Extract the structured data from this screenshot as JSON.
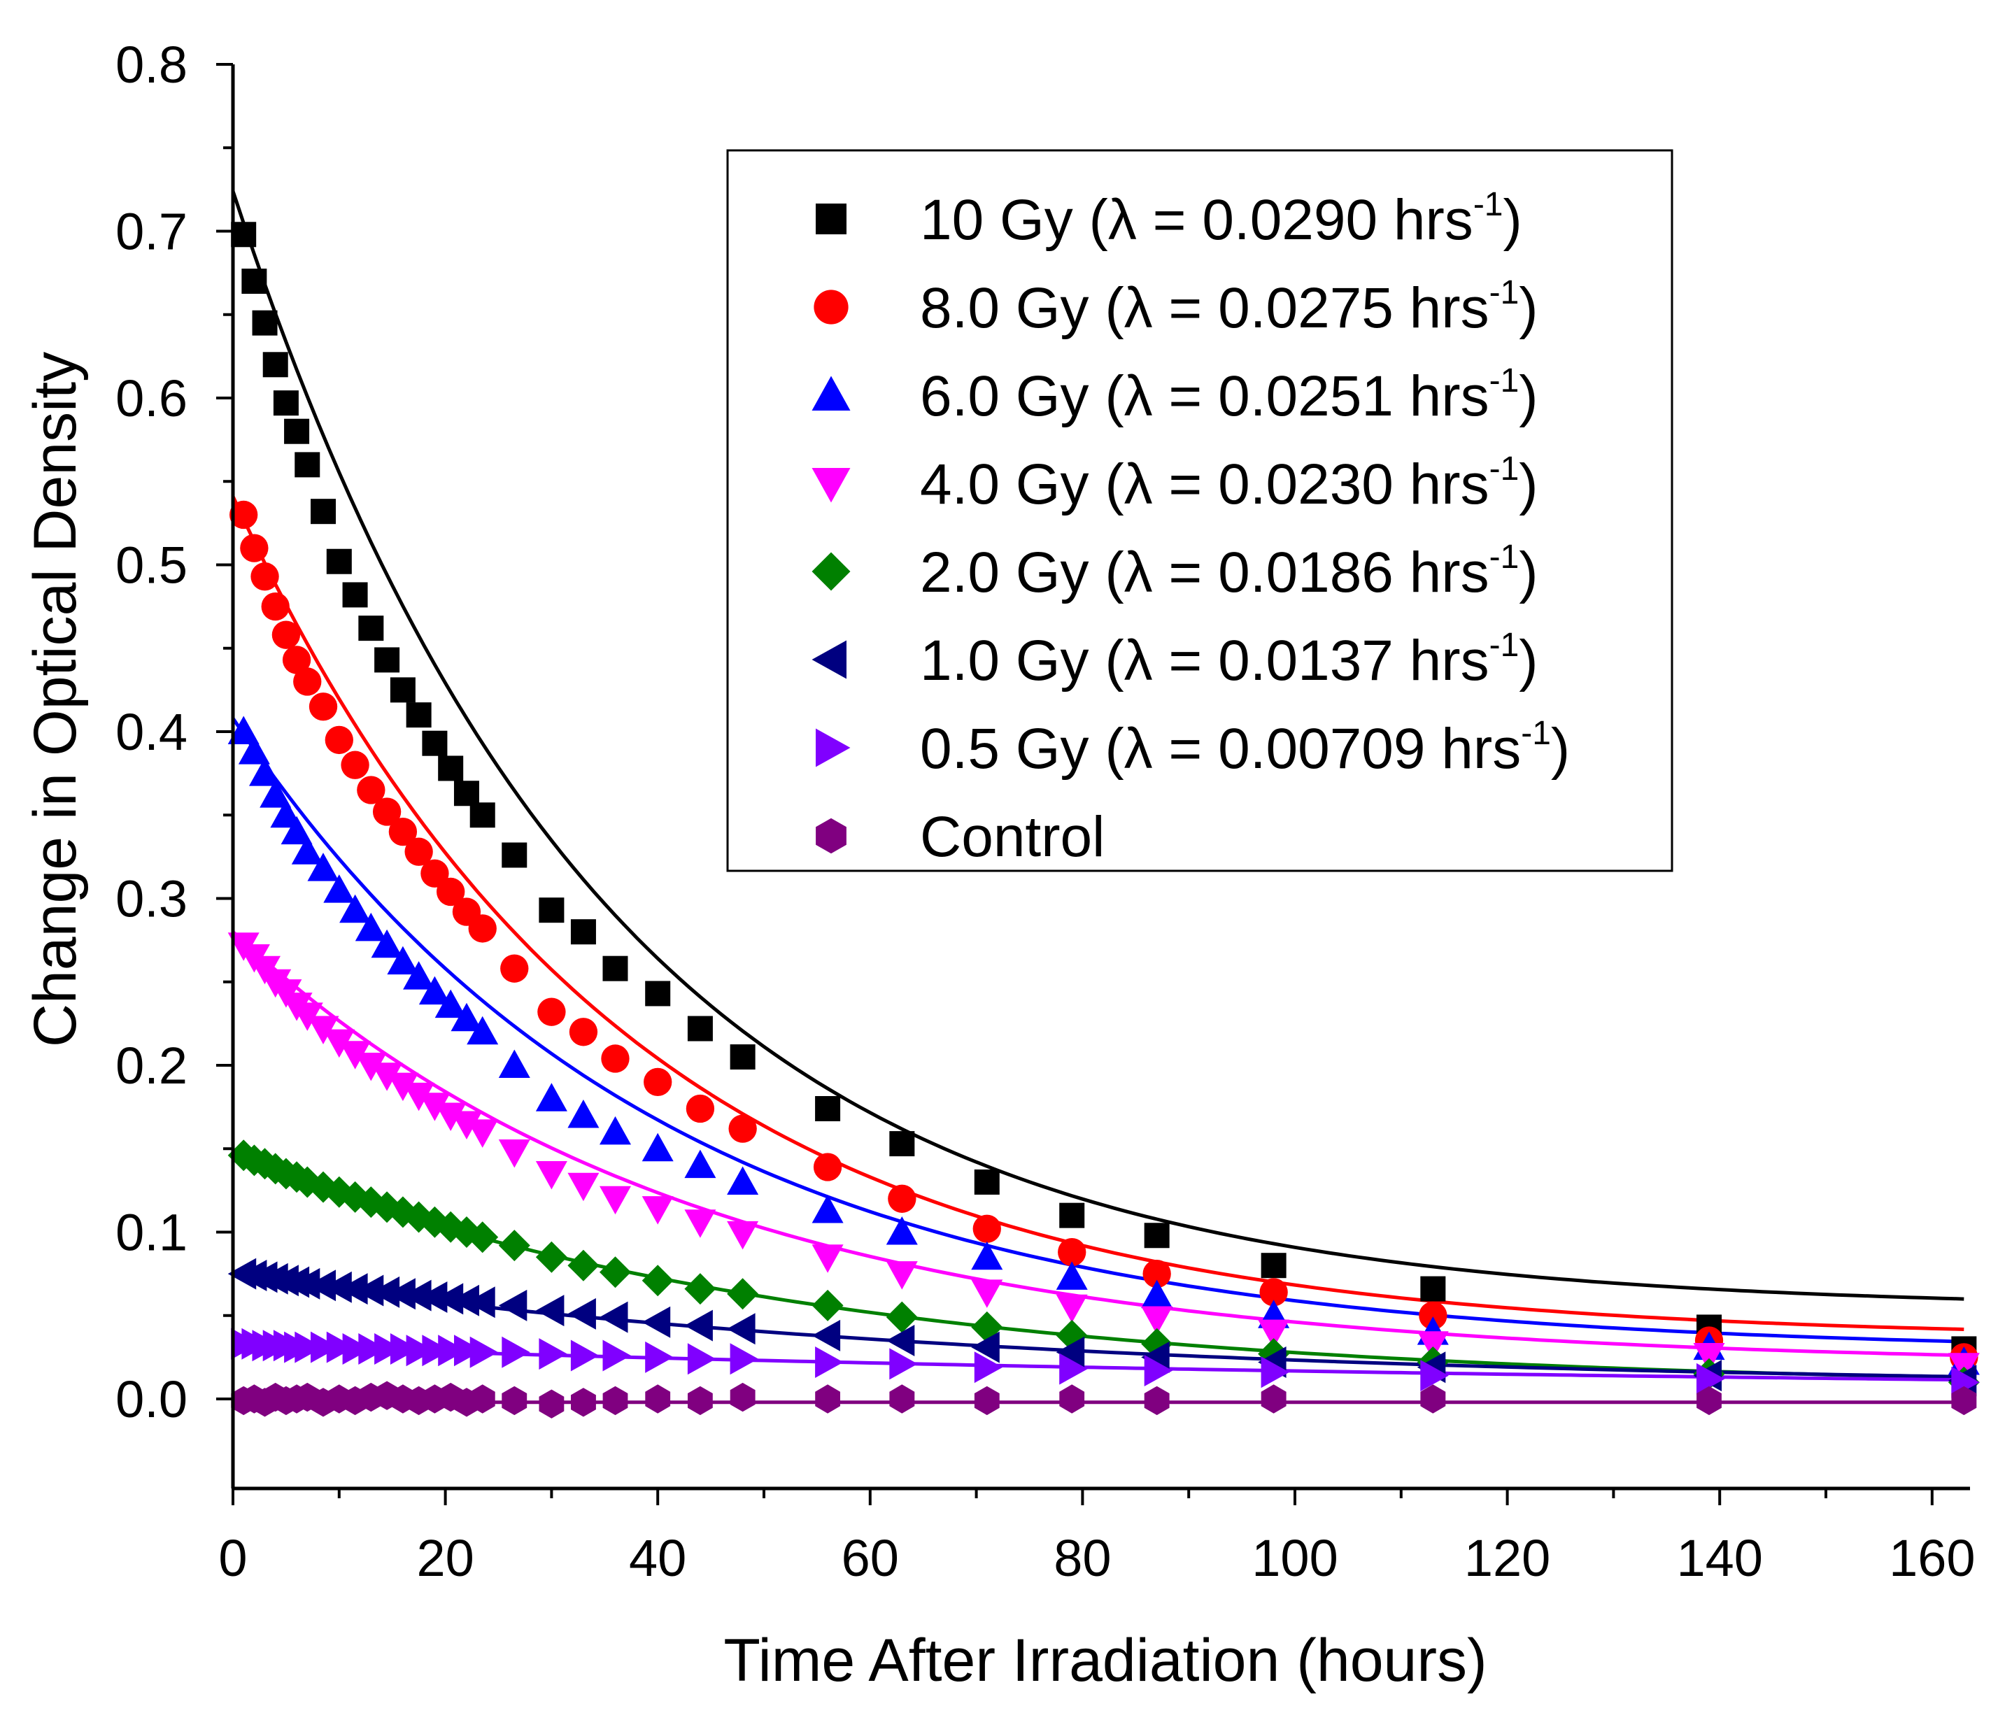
{
  "chart_data": {
    "type": "scatter",
    "title": "",
    "xlabel": "Time After Irradiation (hours)",
    "ylabel": "Change in Optical Density",
    "xlim": [
      0,
      165
    ],
    "ylim": [
      -0.05,
      0.8
    ],
    "x_ticks": [
      "0",
      "20",
      "40",
      "60",
      "80",
      "100",
      "120",
      "140",
      "160"
    ],
    "y_ticks": [
      "0.0",
      "0.1",
      "0.2",
      "0.3",
      "0.4",
      "0.5",
      "0.6",
      "0.7",
      "0.8"
    ],
    "grid": false,
    "legend_position": "top-right",
    "x": [
      1,
      2,
      3,
      4,
      5,
      6,
      7,
      8.5,
      10,
      11.5,
      13,
      14.5,
      16,
      17.5,
      19,
      20.5,
      22,
      23.5,
      26.5,
      30,
      33,
      36,
      40,
      44,
      48,
      56,
      63,
      71,
      79,
      87,
      98,
      113,
      139,
      163
    ],
    "series": [
      {
        "name": "10 Gy",
        "legend": "10 Gy (λ = 0.0290 hrs",
        "superscript": "-1",
        "close": ")",
        "color": "#000000",
        "marker": "square",
        "fit": {
          "A": 0.67,
          "lambda": 0.029,
          "C": 0.054
        },
        "values": [
          0.698,
          0.67,
          0.645,
          0.62,
          0.597,
          0.58,
          0.56,
          0.532,
          0.502,
          0.482,
          0.462,
          0.443,
          0.425,
          0.41,
          0.393,
          0.378,
          0.363,
          0.35,
          0.326,
          0.293,
          0.28,
          0.258,
          0.243,
          0.222,
          0.205,
          0.174,
          0.153,
          0.13,
          0.11,
          0.098,
          0.08,
          0.066,
          0.043,
          0.03
        ]
      },
      {
        "name": "8.0 Gy",
        "legend": "8.0 Gy (λ = 0.0275 hrs",
        "superscript": "-1",
        "close": ")",
        "color": "#ff0000",
        "marker": "circle",
        "fit": {
          "A": 0.505,
          "lambda": 0.0275,
          "C": 0.036
        },
        "values": [
          0.53,
          0.51,
          0.493,
          0.475,
          0.458,
          0.443,
          0.43,
          0.415,
          0.395,
          0.38,
          0.365,
          0.352,
          0.34,
          0.328,
          0.315,
          0.304,
          0.292,
          0.282,
          0.258,
          0.232,
          0.22,
          0.204,
          0.19,
          0.174,
          0.162,
          0.139,
          0.12,
          0.102,
          0.088,
          0.075,
          0.064,
          0.05,
          0.035,
          0.025
        ]
      },
      {
        "name": "6.0 Gy",
        "legend": "6.0 Gy (λ = 0.0251 hrs",
        "superscript": "-1",
        "close": ")",
        "color": "#0000ff",
        "marker": "triangle-up",
        "fit": {
          "A": 0.38,
          "lambda": 0.0251,
          "C": 0.028
        },
        "values": [
          0.4,
          0.388,
          0.375,
          0.362,
          0.35,
          0.34,
          0.328,
          0.318,
          0.305,
          0.293,
          0.282,
          0.272,
          0.262,
          0.253,
          0.244,
          0.236,
          0.228,
          0.22,
          0.2,
          0.18,
          0.17,
          0.16,
          0.15,
          0.14,
          0.13,
          0.113,
          0.1,
          0.085,
          0.073,
          0.062,
          0.05,
          0.04,
          0.031,
          0.022
        ]
      },
      {
        "name": "4.0 Gy",
        "legend": "4.0 Gy (λ = 0.0230 hrs",
        "superscript": "-1",
        "close": ")",
        "color": "#ff00ff",
        "marker": "triangle-down",
        "fit": {
          "A": 0.26,
          "lambda": 0.023,
          "C": 0.02
        },
        "values": [
          0.272,
          0.265,
          0.258,
          0.25,
          0.244,
          0.236,
          0.23,
          0.222,
          0.214,
          0.207,
          0.2,
          0.194,
          0.188,
          0.182,
          0.176,
          0.17,
          0.165,
          0.16,
          0.148,
          0.135,
          0.128,
          0.12,
          0.114,
          0.106,
          0.099,
          0.085,
          0.075,
          0.064,
          0.055,
          0.048,
          0.04,
          0.033,
          0.026,
          0.02
        ]
      },
      {
        "name": "2.0 Gy",
        "legend": "2.0 Gy (λ = 0.0186 hrs",
        "superscript": "-1",
        "close": ")",
        "color": "#008000",
        "marker": "diamond",
        "fit": {
          "A": 0.14,
          "lambda": 0.0186,
          "C": 0.006
        },
        "values": [
          0.146,
          0.143,
          0.141,
          0.138,
          0.135,
          0.133,
          0.13,
          0.127,
          0.124,
          0.121,
          0.118,
          0.115,
          0.112,
          0.109,
          0.106,
          0.103,
          0.1,
          0.097,
          0.092,
          0.085,
          0.08,
          0.076,
          0.071,
          0.066,
          0.063,
          0.056,
          0.049,
          0.043,
          0.038,
          0.033,
          0.027,
          0.022,
          0.015,
          0.01
        ]
      },
      {
        "name": "1.0 Gy",
        "legend": "1.0  Gy (λ = 0.0137 hrs",
        "superscript": "-1",
        "close": ")",
        "color": "#000080",
        "marker": "triangle-left",
        "fit": {
          "A": 0.068,
          "lambda": 0.0137,
          "C": 0.006
        },
        "values": [
          0.075,
          0.074,
          0.073,
          0.072,
          0.071,
          0.07,
          0.069,
          0.068,
          0.067,
          0.066,
          0.065,
          0.064,
          0.063,
          0.062,
          0.061,
          0.06,
          0.059,
          0.058,
          0.056,
          0.053,
          0.051,
          0.049,
          0.046,
          0.044,
          0.042,
          0.038,
          0.035,
          0.031,
          0.028,
          0.025,
          0.022,
          0.019,
          0.014,
          0.011
        ]
      },
      {
        "name": "0.5 Gy",
        "legend": "0.5 Gy (λ = 0.00709 hrs",
        "superscript": "-1",
        "close": ")",
        "color": "#8000ff",
        "marker": "triangle-right",
        "fit": {
          "A": 0.03,
          "lambda": 0.00709,
          "C": 0.002
        },
        "values": [
          0.033,
          0.033,
          0.032,
          0.032,
          0.032,
          0.031,
          0.031,
          0.031,
          0.031,
          0.03,
          0.03,
          0.03,
          0.03,
          0.029,
          0.029,
          0.029,
          0.029,
          0.028,
          0.028,
          0.027,
          0.026,
          0.026,
          0.025,
          0.024,
          0.024,
          0.022,
          0.021,
          0.019,
          0.018,
          0.017,
          0.016,
          0.014,
          0.012,
          0.01
        ]
      },
      {
        "name": "Control",
        "legend": "Control",
        "superscript": "",
        "close": "",
        "color": "#800080",
        "marker": "hexagon",
        "fit": {
          "A": 0,
          "lambda": 0,
          "C": -0.002
        },
        "values": [
          -0.001,
          0.0,
          -0.002,
          0.001,
          -0.001,
          0.0,
          0.001,
          -0.002,
          0.0,
          -0.001,
          0.001,
          0.002,
          0.0,
          -0.001,
          0.0,
          0.001,
          -0.002,
          0.0,
          -0.001,
          -0.003,
          -0.002,
          -0.001,
          0.0,
          -0.001,
          0.001,
          0.0,
          0.0,
          -0.001,
          0.0,
          -0.001,
          0.0,
          0.0,
          -0.001,
          -0.001
        ]
      }
    ]
  }
}
